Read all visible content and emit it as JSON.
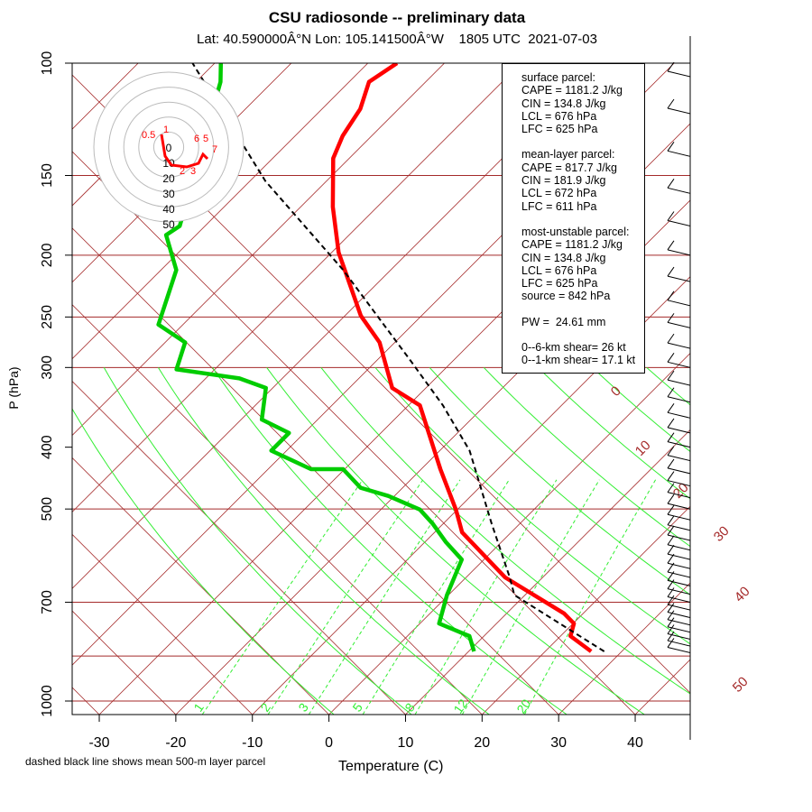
{
  "title": "CSU radiosonde -- preliminary data",
  "subtitle": "Lat: 40.590000Â°N Lon: 105.141500Â°W    1805 UTC  2021-07-03",
  "caption": "dashed black line shows mean 500-m layer parcel",
  "info_box": {
    "surface": [
      "surface parcel:",
      "CAPE = 1181.2 J/kg",
      "CIN = 134.8 J/kg",
      "LCL = 676 hPa",
      "LFC = 625 hPa"
    ],
    "mean_layer": [
      "mean-layer parcel:",
      "CAPE = 817.7 J/kg",
      "CIN = 181.9 J/kg",
      "LCL = 672 hPa",
      "LFC = 611 hPa"
    ],
    "most_unstable": [
      "most-unstable parcel:",
      "CAPE = 1181.2 J/kg",
      "CIN = 134.8 J/kg",
      "LCL = 676 hPa",
      "LFC = 625 hPa",
      "source = 842 hPa"
    ],
    "pw": "PW =  24.61 mm",
    "shear": [
      "0--6-km shear= 26 kt",
      "0--1-km shear= 17.1 kt"
    ]
  },
  "chart_data": {
    "type": "line",
    "subtype": "skew-T log-P diagram",
    "xlabel": "Temperature (C)",
    "ylabel": "P (hPa)",
    "xticks": [
      -30,
      -20,
      -10,
      0,
      10,
      20,
      30,
      40
    ],
    "yticks": [
      100,
      150,
      200,
      250,
      300,
      400,
      500,
      700,
      1000
    ],
    "isobars": [
      100,
      150,
      200,
      250,
      300,
      500,
      700,
      850,
      1000
    ],
    "xlim": [
      -34.7,
      46
    ],
    "ylim": [
      1050,
      100
    ],
    "y_scale": "log",
    "isotherm_labels": [
      "0",
      "10",
      "20",
      "30",
      "40",
      "50"
    ],
    "mixing_ratio_labels": [
      "1",
      "2",
      "3",
      "5",
      "8",
      "12",
      "20"
    ],
    "mixing_ratios": [
      1,
      2,
      3,
      5,
      8,
      12,
      20
    ],
    "colors": {
      "temperature": "#ff0000",
      "dewpoint": "#00cc00",
      "parcel": "#000000",
      "grid": "#a52a2a",
      "adiabat": "#33ee33"
    },
    "series": [
      {
        "key": "temperature",
        "pressure": [
          836,
          791,
          756,
          729,
          640,
          544,
          501,
          433,
          344,
          323,
          274,
          249,
          198,
          168,
          141,
          130,
          118,
          107,
          100
        ],
        "values": [
          26.0,
          21.3,
          20.1,
          17.5,
          5.1,
          -6.4,
          -10.2,
          -17.5,
          -28.5,
          -34.4,
          -42.0,
          -47.9,
          -59.1,
          -65.8,
          -72.1,
          -73.8,
          -75.0,
          -77.4,
          -76.2
        ]
      },
      {
        "key": "dewpoint",
        "pressure": [
          836,
          791,
          756,
          682,
          600,
          563,
          527,
          501,
          477,
          463,
          433,
          433,
          405,
          380,
          362,
          323,
          312,
          302,
          274,
          257,
          211,
          186,
          180,
          107,
          100
        ],
        "values": [
          10.7,
          8.1,
          2.5,
          -0.2,
          -2.9,
          -7.3,
          -11.4,
          -14.9,
          -20.8,
          -25.5,
          -30.2,
          -34.4,
          -42.0,
          -42.0,
          -47.3,
          -50.9,
          -55.6,
          -65.0,
          -67.4,
          -73.2,
          -78.0,
          -83.9,
          -83.3,
          -96.8,
          -99.2
        ]
      },
      {
        "key": "parcel",
        "pressure": [
          836,
          682,
          640,
          527,
          405,
          344,
          293,
          211,
          153,
          100
        ],
        "values": [
          27.7,
          8.6,
          5.7,
          -3.7,
          -16.1,
          -25.5,
          -35.5,
          -56.2,
          -78.0,
          -102.9
        ]
      }
    ],
    "hodograph": {
      "ring_labels": [
        "0",
        "10",
        "20",
        "30",
        "40",
        "50"
      ],
      "point_labels": [
        "0.5",
        "1",
        "6",
        "5",
        "7",
        "3",
        "2"
      ]
    },
    "wind_pressures": [
      840,
      820,
      800,
      780,
      760,
      740,
      720,
      700,
      680,
      660,
      640,
      620,
      600,
      580,
      560,
      540,
      520,
      500,
      480,
      460,
      440,
      420,
      400,
      380,
      360,
      340,
      320,
      300,
      280,
      260,
      240,
      220,
      200,
      180,
      160,
      140,
      120,
      105
    ]
  }
}
